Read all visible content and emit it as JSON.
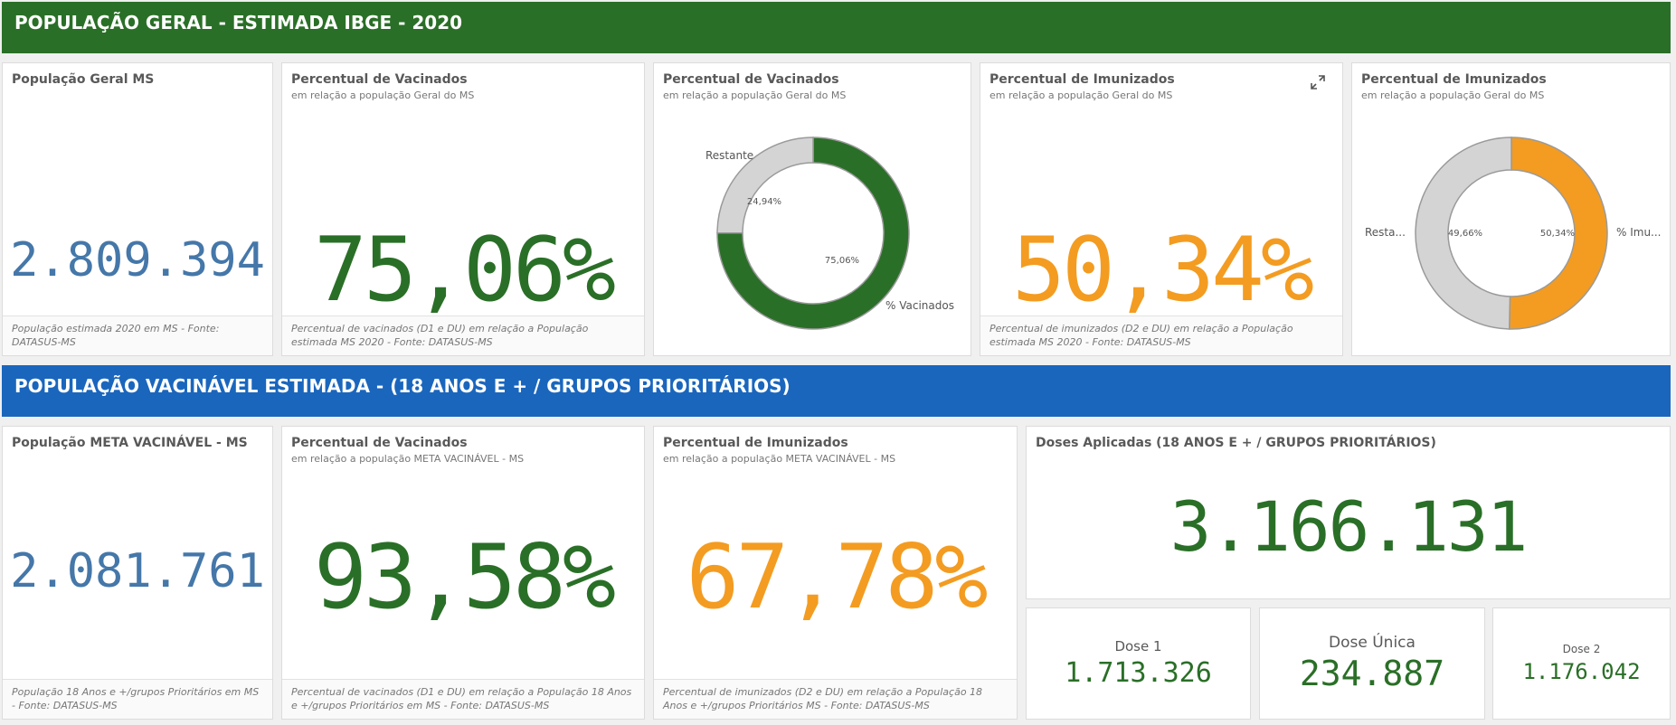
{
  "sections": {
    "geral_title": "POPULAÇÃO GERAL - ESTIMADA IBGE - 2020",
    "vacinavel_title": "POPULAÇÃO VACINÁVEL ESTIMADA - (18 ANOS E + / GRUPOS PRIORITÁRIOS)"
  },
  "geral": {
    "populacao": {
      "title": "População Geral MS",
      "value": "2.809.394",
      "footer": "População estimada 2020 em MS - Fonte: DATASUS-MS"
    },
    "vacinados_kpi": {
      "title": "Percentual de Vacinados",
      "subtitle": "em relação a população Geral do MS",
      "value": "75,06%",
      "footer": "Percentual de vacinados (D1 e DU) em relação a População estimada MS 2020 - Fonte: DATASUS-MS"
    },
    "vacinados_donut": {
      "title": "Percentual de Vacinados",
      "subtitle": "em relação a população Geral do MS"
    },
    "imunizados_kpi": {
      "title": "Percentual de Imunizados",
      "subtitle": "em relação a população Geral do MS",
      "value": "50,34%",
      "footer": "Percentual de imunizados (D2 e DU) em relação a População estimada MS 2020 - Fonte: DATASUS-MS"
    },
    "imunizados_donut": {
      "title": "Percentual de Imunizados",
      "subtitle": "em relação a população Geral do MS"
    }
  },
  "vacinavel": {
    "populacao": {
      "title": "População META VACINÁVEL - MS",
      "value": "2.081.761",
      "footer": "População 18 Anos e +/grupos Prioritários em MS - Fonte: DATASUS-MS"
    },
    "vacinados_kpi": {
      "title": "Percentual de Vacinados",
      "subtitle": "em relação a população META VACINÁVEL - MS",
      "value": "93,58%",
      "footer": "Percentual de vacinados (D1 e DU) em relação a População 18 Anos e +/grupos Prioritários em MS - Fonte: DATASUS-MS"
    },
    "imunizados_kpi": {
      "title": "Percentual de Imunizados",
      "subtitle": "em relação a população META VACINÁVEL - MS",
      "value": "67,78%",
      "footer": "Percentual de imunizados (D2 e DU) em relação a População 18 Anos e +/grupos Prioritários MS - Fonte: DATASUS-MS"
    },
    "doses": {
      "title": "Doses Aplicadas (18 ANOS E + / GRUPOS PRIORITÁRIOS)",
      "value": "3.166.131",
      "dose1_label": "Dose 1",
      "dose1_value": "1.713.326",
      "dose_unica_label": "Dose Única",
      "dose_unica_value": "234.887",
      "dose2_label": "Dose 2",
      "dose2_value": "1.176.042"
    }
  },
  "colors": {
    "green": "#2a6f27",
    "blue_banner": "#1a66bd",
    "orange": "#f39c21",
    "kpi_blue": "#4577a9",
    "donut_rest": "#d4d4d4"
  },
  "chart_data": [
    {
      "type": "pie",
      "title": "Percentual de Vacinados",
      "categories": [
        "Restante",
        "% Vacinados"
      ],
      "values": [
        24.94,
        75.06
      ],
      "value_labels": [
        "24,94%",
        "75,06%"
      ],
      "colors": [
        "#d4d4d4",
        "#2a6f27"
      ]
    },
    {
      "type": "pie",
      "title": "Percentual de Imunizados",
      "categories": [
        "Resta...",
        "% Imu..."
      ],
      "values": [
        49.66,
        50.34
      ],
      "value_labels": [
        "49,66%",
        "50,34%"
      ],
      "colors": [
        "#d4d4d4",
        "#f39c21"
      ]
    }
  ]
}
